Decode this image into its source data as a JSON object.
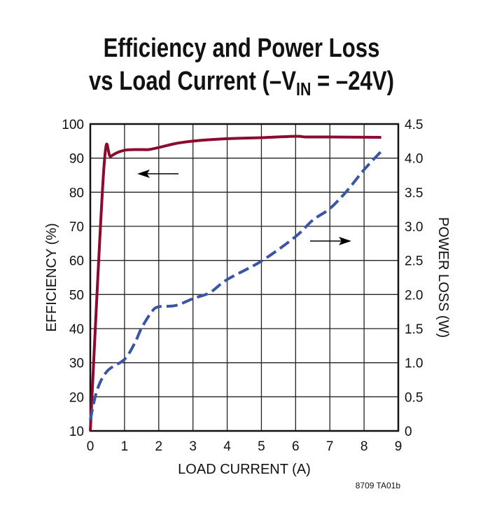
{
  "chart_data": {
    "type": "line",
    "title_line1": "Efficiency and Power Loss",
    "title_line2_prefix": "vs Load Current (–V",
    "title_line2_sub": "IN",
    "title_line2_suffix": " = –24V)",
    "xlabel": "LOAD CURRENT (A)",
    "ylabel_left": "EFFICIENCY (%)",
    "ylabel_right": "POWER LOSS (W)",
    "xlim": [
      0,
      9
    ],
    "ylim_left": [
      10,
      100
    ],
    "ylim_right": [
      0,
      4.5
    ],
    "x_ticks": [
      "0",
      "1",
      "2",
      "3",
      "4",
      "5",
      "6",
      "7",
      "8",
      "9"
    ],
    "y_left_ticks": [
      "10",
      "20",
      "30",
      "40",
      "50",
      "60",
      "70",
      "80",
      "90",
      "100"
    ],
    "y_right_ticks": [
      "0",
      "0.5",
      "1.0",
      "1.5",
      "2.0",
      "2.5",
      "3.0",
      "3.5",
      "4.0",
      "4.5"
    ],
    "grid": true,
    "series": [
      {
        "axis": "left",
        "color": "#8b0a2e",
        "style": "solid",
        "x": [
          0,
          0.4,
          0.6,
          1.0,
          1.5,
          1.7,
          2.0,
          2.5,
          3.0,
          4.0,
          5.0,
          6.0,
          6.3,
          7.0,
          8.5
        ],
        "y": [
          10,
          87.5,
          90.5,
          92.3,
          92.5,
          92.5,
          93.1,
          94.3,
          95.0,
          95.7,
          96.0,
          96.4,
          96.2,
          96.2,
          96.1
        ]
      },
      {
        "axis": "right",
        "color": "#3a55a4",
        "style": "dashed",
        "x": [
          0,
          0.2,
          0.5,
          1.0,
          1.3,
          1.5,
          1.8,
          2.0,
          2.5,
          3.0,
          3.5,
          4.0,
          5.0,
          6.0,
          6.5,
          7.0,
          7.5,
          8.0,
          8.5
        ],
        "y": [
          0.16,
          0.6,
          0.88,
          1.05,
          1.29,
          1.51,
          1.75,
          1.82,
          1.84,
          1.94,
          2.03,
          2.22,
          2.49,
          2.85,
          3.09,
          3.26,
          3.52,
          3.83,
          4.1
        ]
      }
    ],
    "annotations": [
      "left-arrow near efficiency curve",
      "right-arrow near power loss curve"
    ],
    "figure_code": "8709 TA01b"
  }
}
